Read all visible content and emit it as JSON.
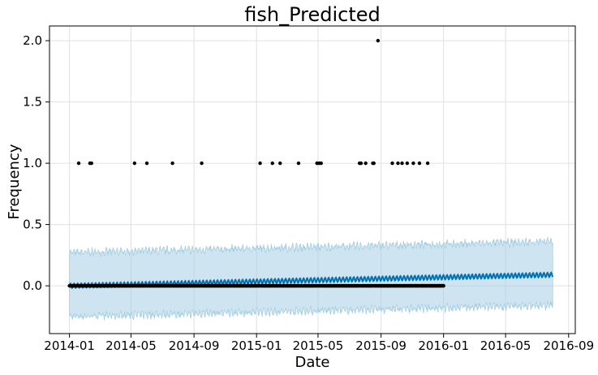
{
  "chart_data": {
    "type": "scatter",
    "title": "fish_Predicted",
    "xlabel": "Date",
    "ylabel": "Frequency",
    "x_axis": {
      "type": "date",
      "range": [
        "2013-11-23",
        "2016-09-14"
      ],
      "ticks": [
        "2014-01-01",
        "2014-05-01",
        "2014-09-01",
        "2015-01-01",
        "2015-05-01",
        "2015-09-01",
        "2016-01-01",
        "2016-05-01",
        "2016-09-01"
      ],
      "tick_labels": [
        "2014-01",
        "2014-05",
        "2014-09",
        "2015-01",
        "2015-05",
        "2015-09",
        "2016-01",
        "2016-05",
        "2016-09"
      ]
    },
    "y_axis": {
      "range": [
        -0.39,
        2.12
      ],
      "ticks": [
        0.0,
        0.5,
        1.0,
        1.5,
        2.0
      ],
      "tick_labels": [
        "0.0",
        "0.5",
        "1.0",
        "1.5",
        "2.0"
      ]
    },
    "grid": true,
    "series": [
      {
        "role": "observed",
        "style": "black-dots",
        "color": "#000000",
        "baseline_range": [
          "2014-01-01",
          "2016-01-01"
        ],
        "baseline_value": 0,
        "points": [
          {
            "x": "2014-01-19",
            "y": 1
          },
          {
            "x": "2014-02-10",
            "y": 1
          },
          {
            "x": "2014-02-13",
            "y": 1
          },
          {
            "x": "2014-05-08",
            "y": 1
          },
          {
            "x": "2014-06-01",
            "y": 1
          },
          {
            "x": "2014-07-21",
            "y": 1
          },
          {
            "x": "2014-09-16",
            "y": 1
          },
          {
            "x": "2015-01-08",
            "y": 1
          },
          {
            "x": "2015-02-01",
            "y": 1
          },
          {
            "x": "2015-02-16",
            "y": 1
          },
          {
            "x": "2015-03-24",
            "y": 1
          },
          {
            "x": "2015-04-29",
            "y": 1
          },
          {
            "x": "2015-05-03",
            "y": 1
          },
          {
            "x": "2015-05-07",
            "y": 1
          },
          {
            "x": "2015-07-21",
            "y": 1
          },
          {
            "x": "2015-07-24",
            "y": 1
          },
          {
            "x": "2015-08-02",
            "y": 1
          },
          {
            "x": "2015-08-16",
            "y": 1
          },
          {
            "x": "2015-08-18",
            "y": 1
          },
          {
            "x": "2015-08-26",
            "y": 2
          },
          {
            "x": "2015-09-23",
            "y": 1
          },
          {
            "x": "2015-10-04",
            "y": 1
          },
          {
            "x": "2015-10-12",
            "y": 1
          },
          {
            "x": "2015-10-22",
            "y": 1
          },
          {
            "x": "2015-11-03",
            "y": 1
          },
          {
            "x": "2015-11-15",
            "y": 1
          },
          {
            "x": "2015-12-01",
            "y": 1
          }
        ]
      },
      {
        "role": "forecast",
        "style": "line",
        "color": "#0072B2",
        "range": [
          "2014-01-01",
          "2016-08-01"
        ],
        "trend": [
          0.0,
          0.09
        ],
        "weekly_amplitude": 0.018
      },
      {
        "role": "uncertainty",
        "style": "band",
        "color": "#A6CEE3",
        "fill_opacity": 0.55,
        "range": [
          "2014-01-01",
          "2016-08-01"
        ],
        "lower_offset": -0.25,
        "upper_offset": 0.27
      }
    ]
  }
}
